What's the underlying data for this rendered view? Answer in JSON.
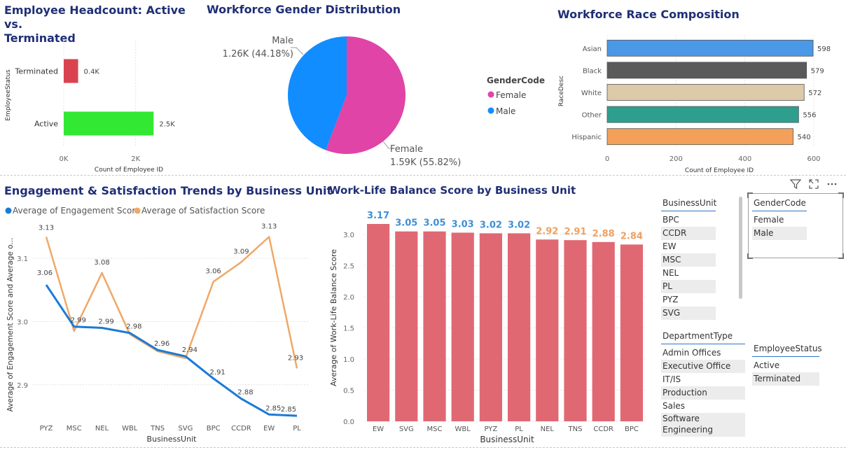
{
  "titles": {
    "headcount": "Employee Headcount: Active vs.",
    "headcount_line2": "Terminated",
    "gender": "Workforce Gender Distribution",
    "race": "Workforce Race Composition",
    "engagement": "Engagement & Satisfaction Trends by Business Unit",
    "worklife": "Work-Life Balance Score by Business Unit"
  },
  "chart_data": [
    {
      "type": "bar",
      "orientation": "horizontal",
      "categories": [
        "Terminated",
        "Active"
      ],
      "values": [
        400,
        2500
      ],
      "data_labels": [
        "0.4K",
        "2.5K"
      ],
      "colors": [
        "#d9434f",
        "#33e833"
      ],
      "xlabel": "Count of Employee ID",
      "ylabel": "EmployeeStatus",
      "xticks": [
        "0K",
        "2K"
      ],
      "xlim": [
        0,
        3000
      ]
    },
    {
      "type": "pie",
      "slices": [
        {
          "name": "Male",
          "value": 1260,
          "percent": 44.18,
          "label_line1": "Male",
          "label_line2": "1.26K (44.18%)",
          "color": "#118dff"
        },
        {
          "name": "Female",
          "value": 1590,
          "percent": 55.82,
          "label_line1": "Female",
          "label_line2": "1.59K (55.82%)",
          "color": "#e044a7"
        }
      ],
      "legend": {
        "title": "GenderCode",
        "items": [
          "Female",
          "Male"
        ],
        "position": "right"
      }
    },
    {
      "type": "bar",
      "orientation": "horizontal",
      "categories": [
        "Asian",
        "Black",
        "White",
        "Other",
        "Hispanic"
      ],
      "values": [
        598,
        579,
        572,
        556,
        540
      ],
      "colors": [
        "#4a98e6",
        "#5a5a5a",
        "#dccaa8",
        "#2e9e8f",
        "#f2a05a"
      ],
      "xlabel": "Count of Employee ID",
      "ylabel": "RaceDesc",
      "xticks": [
        "0",
        "200",
        "400",
        "600"
      ],
      "xlim": [
        0,
        600
      ]
    },
    {
      "type": "line",
      "categories": [
        "PYZ",
        "MSC",
        "NEL",
        "WBL",
        "TNS",
        "SVG",
        "BPC",
        "CCDR",
        "EW",
        "PL"
      ],
      "series": [
        {
          "name": "Average of Engagement Score",
          "color": "#1a7bd6",
          "values": [
            3.06,
            2.99,
            2.99,
            2.98,
            2.96,
            2.94,
            2.91,
            2.88,
            2.85,
            2.85
          ],
          "raw": [
            3.058,
            2.992,
            2.99,
            2.982,
            2.955,
            2.945,
            2.91,
            2.878,
            2.853,
            2.851
          ]
        },
        {
          "name": "Average of Satisfaction Score",
          "color": "#f0a868",
          "values": [
            3.13,
            2.99,
            3.08,
            2.98,
            2.96,
            2.94,
            3.06,
            3.09,
            3.13,
            2.93
          ],
          "raw": [
            3.134,
            2.985,
            3.077,
            2.98,
            2.953,
            2.942,
            3.063,
            3.094,
            3.134,
            2.926
          ]
        }
      ],
      "xlabel": "BusinessUnit",
      "ylabel": "Average of Engagement Score and Average o...",
      "yticks": [
        "2.9",
        "3.0",
        "3.1"
      ],
      "ylim": [
        2.84,
        3.15
      ],
      "legend_position": "top-left"
    },
    {
      "type": "bar",
      "categories": [
        "EW",
        "SVG",
        "MSC",
        "WBL",
        "PYZ",
        "PL",
        "NEL",
        "TNS",
        "CCDR",
        "BPC"
      ],
      "values": [
        3.17,
        3.05,
        3.05,
        3.03,
        3.02,
        3.02,
        2.92,
        2.91,
        2.88,
        2.84
      ],
      "label_colors": [
        "#3f8fd6",
        "#3f8fd6",
        "#3f8fd6",
        "#3f8fd6",
        "#3f8fd6",
        "#3f8fd6",
        "#f0a060",
        "#f0a060",
        "#f0a060",
        "#f0a060"
      ],
      "bar_color": "#e06873",
      "xlabel": "BusinessUnit",
      "ylabel": "Average of Work-Life Balance Score",
      "yticks": [
        "0.0",
        "0.5",
        "1.0",
        "1.5",
        "2.0",
        "2.5",
        "3.0"
      ],
      "ylim": [
        0,
        3.35
      ]
    }
  ],
  "slicers": {
    "business_unit": {
      "header": "BusinessUnit",
      "items": [
        "BPC",
        "CCDR",
        "EW",
        "MSC",
        "NEL",
        "PL",
        "PYZ",
        "SVG"
      ]
    },
    "gender_code": {
      "header": "GenderCode",
      "items": [
        "Female",
        "Male"
      ]
    },
    "department_type": {
      "header": "DepartmentType",
      "items": [
        "Admin Offices",
        "Executive Office",
        "IT/IS",
        "Production",
        "Sales",
        "Software Engineering"
      ]
    },
    "employee_status": {
      "header": "EmployeeStatus",
      "items": [
        "Active",
        "Terminated"
      ]
    }
  },
  "toolbar": {
    "icons": [
      "filter-icon",
      "focus-mode-icon",
      "more-options-icon"
    ]
  }
}
